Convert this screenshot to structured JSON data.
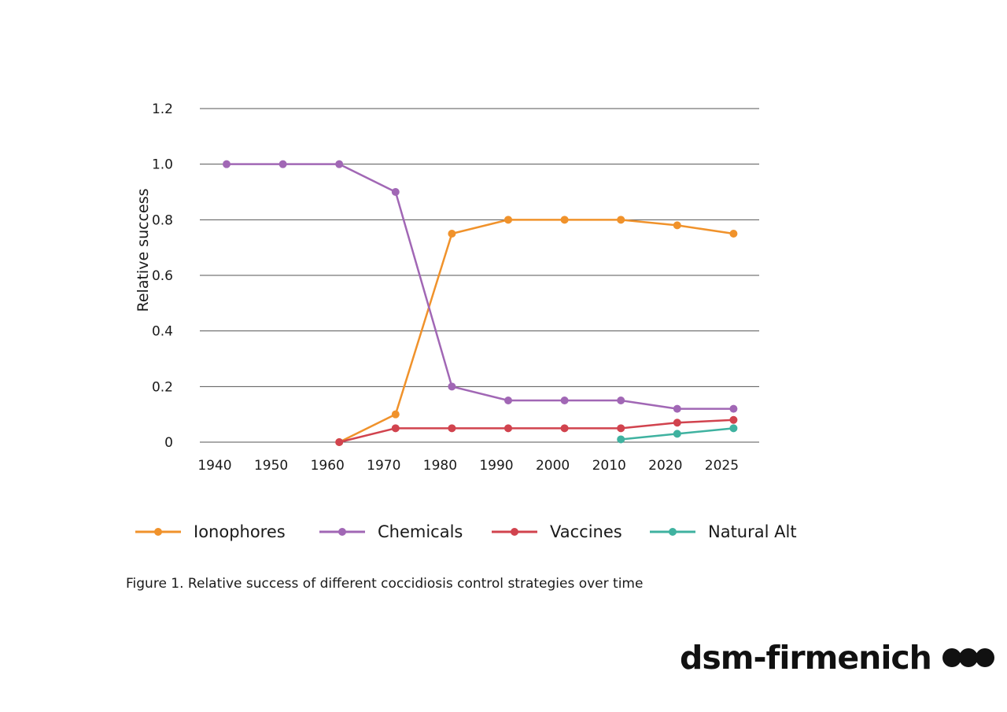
{
  "chart_data": {
    "type": "line",
    "title": "",
    "xlabel": "",
    "ylabel": "Relative success",
    "ylim": [
      0,
      1.2
    ],
    "yticks": [
      "0",
      "0.2",
      "0.4",
      "0.6",
      "0.8",
      "1.0",
      "1.2"
    ],
    "grid": true,
    "legend_position": "bottom",
    "categories": [
      "1940",
      "1950",
      "1960",
      "1970",
      "1980",
      "1990",
      "2000",
      "2010",
      "2020",
      "2025"
    ],
    "series": [
      {
        "name": "Ionophores",
        "color": "#F0922B",
        "values": [
          null,
          null,
          0.0,
          0.1,
          0.75,
          0.8,
          0.8,
          0.8,
          0.78,
          0.75
        ]
      },
      {
        "name": "Chemicals",
        "color": "#A167B5",
        "values": [
          1.0,
          1.0,
          1.0,
          0.9,
          0.2,
          0.15,
          0.15,
          0.15,
          0.12,
          0.12
        ]
      },
      {
        "name": "Vaccines",
        "color": "#D1434E",
        "values": [
          null,
          null,
          0.0,
          0.05,
          0.05,
          0.05,
          0.05,
          0.05,
          0.07,
          0.08
        ]
      },
      {
        "name": "Natural Alt",
        "color": "#3FB2A0",
        "values": [
          null,
          null,
          null,
          null,
          null,
          null,
          null,
          0.01,
          0.03,
          0.05
        ]
      }
    ]
  },
  "caption": "Figure 1. Relative success of different coccidiosis control strategies over time",
  "brand": {
    "name": "dsm-firmenich",
    "logo_icon": "three-dots-logo-icon"
  },
  "colors": {
    "gridline": "#555555",
    "text": "#1a1a1a"
  }
}
